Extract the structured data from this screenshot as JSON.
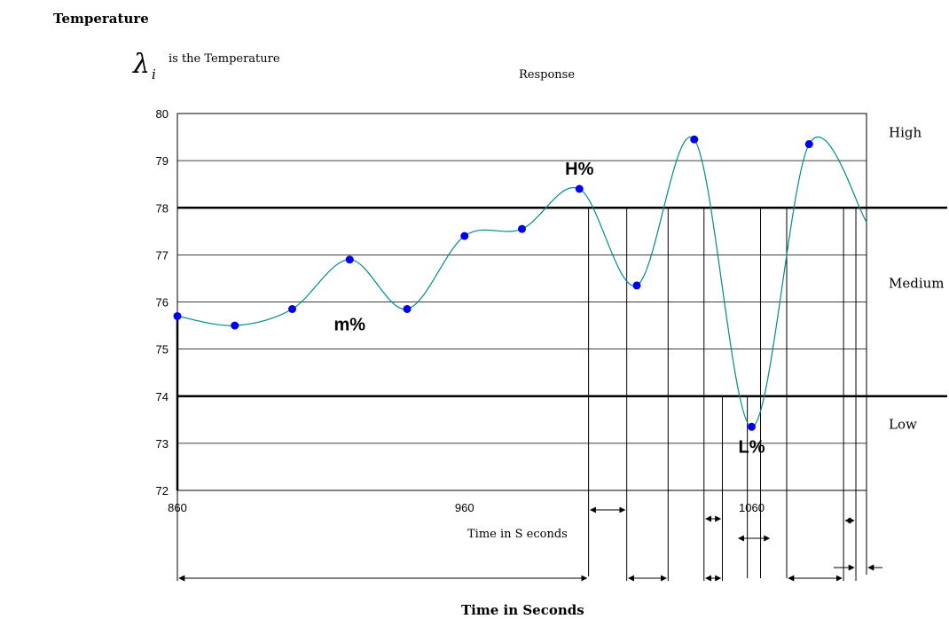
{
  "chart_data": {
    "type": "line",
    "title": "Temperature",
    "legend_note": {
      "symbol": "λ",
      "subscript": "i",
      "text": "is the Temperature"
    },
    "subtitle": "Response",
    "x_axis_label": "Time in S econds",
    "bottom_label": "Time in Seconds",
    "x_ticks": [
      860,
      960,
      1060
    ],
    "y_ticks": [
      72,
      73,
      74,
      75,
      76,
      77,
      78,
      79,
      80
    ],
    "xlim": [
      860,
      1100
    ],
    "ylim": [
      72,
      80
    ],
    "grid": true,
    "thresholds": [
      {
        "name": "high_threshold",
        "value": 78
      },
      {
        "name": "low_threshold",
        "value": 74
      }
    ],
    "bands": [
      {
        "label": "High",
        "value": 79.6
      },
      {
        "label": "Medium",
        "value": 76.4
      },
      {
        "label": "Low",
        "value": 73.4
      }
    ],
    "series": [
      {
        "color": "#008b8b",
        "marker_color": "#0000ee",
        "x": [
          860,
          880,
          900,
          920,
          940,
          960,
          980,
          1000,
          1020,
          1040,
          1060,
          1080,
          1100
        ],
        "y": [
          75.7,
          75.5,
          75.85,
          76.9,
          75.85,
          77.4,
          77.55,
          78.4,
          76.35,
          79.45,
          73.35,
          79.35,
          77.7
        ]
      }
    ],
    "annotations": [
      {
        "text": "m%",
        "x": 920,
        "y": 75.4
      },
      {
        "text": "H%",
        "x": 1000,
        "y": 78.7
      },
      {
        "text": "L%",
        "x": 1060,
        "y": 72.8
      }
    ],
    "crossing_x": [
      1003.2,
      1016.5,
      1030.9,
      1043.4,
      1049.8,
      1058.5,
      1063.1,
      1072.2,
      1092,
      1096.3,
      1100
    ]
  }
}
